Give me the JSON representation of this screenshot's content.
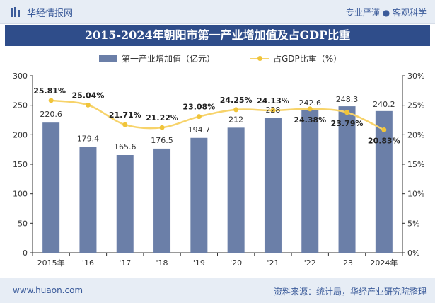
{
  "header": {
    "brand": "华经情报网",
    "slogan": "专业严谨 ● 客观科学"
  },
  "title": "2015-2024年朝阳市第一产业增加值及占GDP比重",
  "legend": {
    "bar": "第一产业增加值（亿元）",
    "line": "占GDP比重（%）"
  },
  "footer": {
    "site": "www.huaon.com",
    "source": "资料来源：统计局，华经产业研究院整理"
  },
  "colors": {
    "bar": "#6b7fa8",
    "line": "#f7d36a",
    "marker": "#f0c43a",
    "title_bg": "#2f4d8a"
  },
  "chart_data": {
    "type": "bar",
    "categories": [
      "2015年",
      "'16",
      "'17",
      "'18",
      "'19",
      "'20",
      "'21",
      "'22",
      "'23",
      "2024年"
    ],
    "series": [
      {
        "name": "第一产业增加值（亿元）",
        "type": "bar",
        "axis": "left",
        "values": [
          220.6,
          179.4,
          165.6,
          176.5,
          194.7,
          212,
          228,
          242.6,
          248.3,
          240.2
        ],
        "labels": [
          "220.6",
          "179.4",
          "165.6",
          "176.5",
          "194.7",
          "212",
          "228",
          "242.6",
          "248.3",
          "240.2"
        ]
      },
      {
        "name": "占GDP比重（%）",
        "type": "line",
        "axis": "right",
        "values": [
          25.81,
          25.04,
          21.71,
          21.22,
          23.08,
          24.25,
          24.13,
          24.38,
          23.79,
          20.83
        ],
        "labels": [
          "25.81%",
          "25.04%",
          "21.71%",
          "21.22%",
          "23.08%",
          "24.25%",
          "24.13%",
          "24.38%",
          "23.79%",
          "20.83%"
        ]
      }
    ],
    "y_left": {
      "lim": [
        0,
        300
      ],
      "ticks": [
        "0",
        "50",
        "100",
        "150",
        "200",
        "250",
        "300"
      ]
    },
    "y_right": {
      "lim": [
        0,
        30
      ],
      "ticks": [
        "0%",
        "5%",
        "10%",
        "15%",
        "20%",
        "25%",
        "30%"
      ]
    },
    "grid": false,
    "legend_position": "top-center"
  }
}
